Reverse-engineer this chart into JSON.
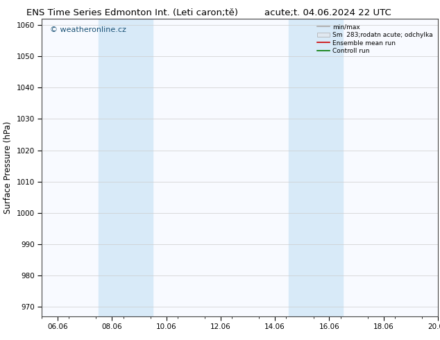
{
  "title_left": "ENS Time Series Edmonton Int. (Leti caron;tě)",
  "title_right": "acute;t. 04.06.2024 22 UTC",
  "ylabel": "Surface Pressure (hPa)",
  "ylim": [
    967,
    1062
  ],
  "yticks": [
    970,
    980,
    990,
    1000,
    1010,
    1020,
    1030,
    1040,
    1050,
    1060
  ],
  "xlim": [
    0,
    14.583
  ],
  "xtick_positions": [
    0.583,
    2.583,
    4.583,
    6.583,
    8.583,
    10.583,
    12.583,
    14.583
  ],
  "xtick_labels": [
    "06.06",
    "08.06",
    "10.06",
    "12.06",
    "14.06",
    "16.06",
    "18.06",
    "20.06"
  ],
  "shaded_bands": [
    {
      "xmin": 2.083,
      "xmax": 4.083
    },
    {
      "xmin": 9.083,
      "xmax": 11.083
    }
  ],
  "band_color": "#d8eaf8",
  "watermark": "© weatheronline.cz",
  "watermark_color": "#1a5276",
  "legend_labels": [
    "min/max",
    "Sm  283;rodatn acute; odchylka",
    "Ensemble mean run",
    "Controll run"
  ],
  "legend_colors": [
    "#aaaaaa",
    "#cccccc",
    "#cc0000",
    "#007700"
  ],
  "bg_color": "#ffffff",
  "plot_bg": "#f8faff",
  "spine_color": "#444444",
  "grid_color": "#cccccc",
  "title_fontsize": 9.5,
  "tick_fontsize": 7.5,
  "ylabel_fontsize": 8.5,
  "watermark_fontsize": 8
}
